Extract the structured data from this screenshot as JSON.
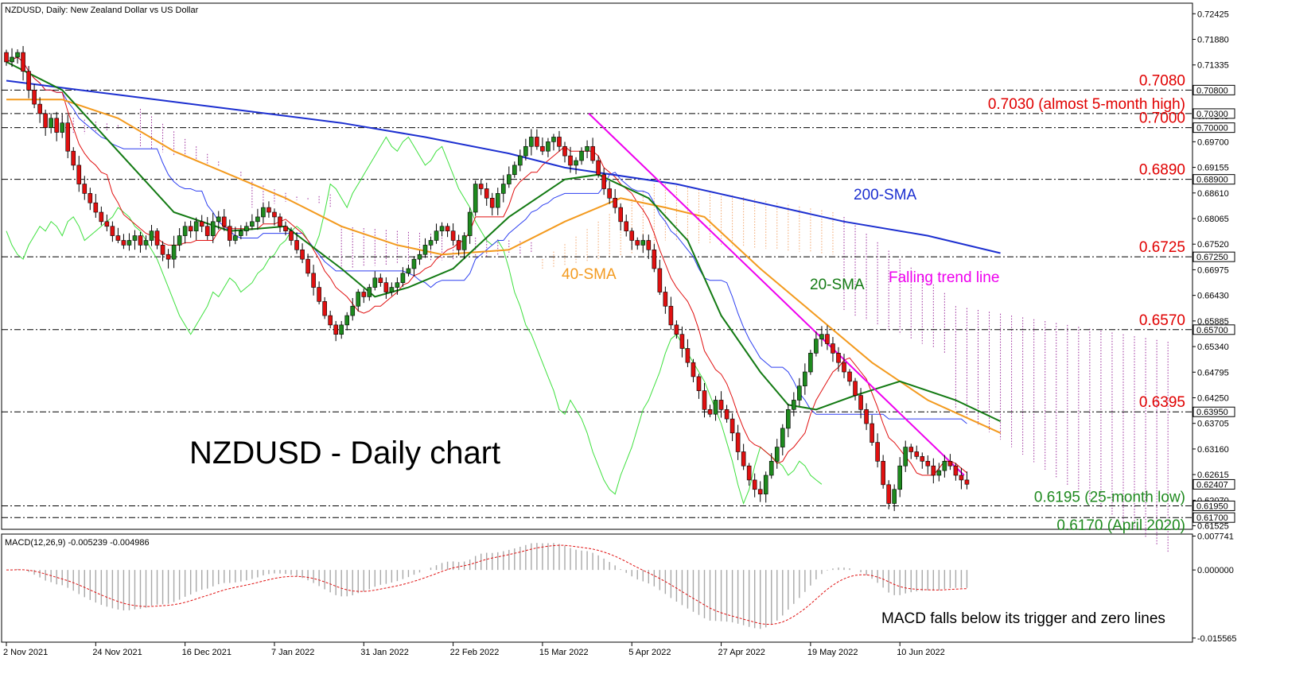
{
  "header": {
    "symbol_label": "NZDUSD, Daily:  New Zealand Dollar vs US Dollar"
  },
  "macd_header": {
    "label": "MACD(12,26,9) -0.005239 -0.004986"
  },
  "annotations": {
    "title": "NZDUSD - Daily chart",
    "sma200": "200-SMA",
    "sma40": "40-SMA",
    "sma20": "20-SMA",
    "trend": "Falling trend line",
    "macd_note": "MACD falls below its trigger and zero lines"
  },
  "colors": {
    "bull": "#1e8a1e",
    "bear": "#e01010",
    "sma200": "#1c2fd0",
    "sma40": "#f39a1e",
    "sma20": "#137a13",
    "tenkan": "#e01010",
    "kijun": "#2d3ff0",
    "chikou": "#3ee03e",
    "trend": "#ee00ee",
    "cloud_bull": "#f2a46a",
    "cloud_bear": "#9a2a9a",
    "red_label": "#e00000",
    "green_label": "#1f8a1f"
  },
  "chart_data": {
    "type": "candlestick",
    "price_axis": {
      "ylim": [
        0.6145,
        0.7265
      ],
      "ticks": [
        "0.72425",
        "0.71880",
        "0.71335",
        "0.70790",
        "0.70245",
        "0.69700",
        "0.69155",
        "0.68610",
        "0.68065",
        "0.67520",
        "0.66975",
        "0.66430",
        "0.65885",
        "0.65340",
        "0.64795",
        "0.64250",
        "0.63705",
        "0.63160",
        "0.62615",
        "0.62070",
        "0.61525"
      ],
      "current_price": "0.62407"
    },
    "levels": [
      {
        "value": 0.708,
        "axis_label": "0.70800",
        "text": "0.7080",
        "color": "red"
      },
      {
        "value": 0.703,
        "axis_label": "0.70300",
        "text": "0.7030 (almost 5-month high)",
        "color": "red"
      },
      {
        "value": 0.7,
        "axis_label": "0.70000",
        "text": "0.7000",
        "color": "red"
      },
      {
        "value": 0.689,
        "axis_label": "0.68900",
        "text": "0.6890",
        "color": "red"
      },
      {
        "value": 0.6725,
        "axis_label": "0.67250",
        "text": "0.6725",
        "color": "red"
      },
      {
        "value": 0.657,
        "axis_label": "0.65700",
        "text": "0.6570",
        "color": "red"
      },
      {
        "value": 0.6395,
        "axis_label": "0.63950",
        "text": "0.6395",
        "color": "red"
      },
      {
        "value": 0.6195,
        "axis_label": "0.61950",
        "text": "0.6195 (25-month low)",
        "color": "green"
      },
      {
        "value": 0.617,
        "axis_label": "0.61700",
        "text": "0.6170 (April 2020)",
        "color": "green"
      }
    ],
    "x_axis": {
      "labels": [
        "2 Nov 2021",
        "24 Nov 2021",
        "16 Dec 2021",
        "7 Jan 2022",
        "31 Jan 2022",
        "22 Feb 2022",
        "15 Mar 2022",
        "5 Apr 2022",
        "27 Apr 2022",
        "19 May 2022",
        "10 Jun 2022"
      ],
      "label_bar_index": [
        0,
        16,
        32,
        48,
        64,
        80,
        96,
        112,
        128,
        144,
        160
      ]
    },
    "close": [
      0.714,
      0.715,
      0.716,
      0.712,
      0.708,
      0.705,
      0.703,
      0.7,
      0.702,
      0.699,
      0.701,
      0.695,
      0.692,
      0.688,
      0.686,
      0.684,
      0.682,
      0.68,
      0.679,
      0.677,
      0.676,
      0.675,
      0.676,
      0.677,
      0.675,
      0.676,
      0.678,
      0.675,
      0.673,
      0.672,
      0.675,
      0.677,
      0.679,
      0.678,
      0.68,
      0.679,
      0.677,
      0.68,
      0.681,
      0.679,
      0.676,
      0.677,
      0.678,
      0.679,
      0.68,
      0.681,
      0.683,
      0.682,
      0.681,
      0.679,
      0.678,
      0.676,
      0.674,
      0.672,
      0.669,
      0.666,
      0.663,
      0.66,
      0.658,
      0.656,
      0.658,
      0.66,
      0.662,
      0.665,
      0.664,
      0.666,
      0.668,
      0.667,
      0.665,
      0.666,
      0.667,
      0.669,
      0.67,
      0.672,
      0.673,
      0.675,
      0.676,
      0.678,
      0.679,
      0.678,
      0.676,
      0.674,
      0.677,
      0.682,
      0.688,
      0.687,
      0.685,
      0.683,
      0.686,
      0.688,
      0.69,
      0.692,
      0.694,
      0.696,
      0.698,
      0.696,
      0.695,
      0.697,
      0.698,
      0.696,
      0.694,
      0.692,
      0.693,
      0.695,
      0.696,
      0.693,
      0.69,
      0.687,
      0.685,
      0.683,
      0.68,
      0.678,
      0.676,
      0.675,
      0.676,
      0.674,
      0.67,
      0.665,
      0.662,
      0.658,
      0.656,
      0.653,
      0.65,
      0.647,
      0.644,
      0.64,
      0.639,
      0.642,
      0.64,
      0.638,
      0.635,
      0.631,
      0.628,
      0.625,
      0.623,
      0.622,
      0.626,
      0.629,
      0.632,
      0.636,
      0.64,
      0.642,
      0.645,
      0.648,
      0.652,
      0.655,
      0.656,
      0.654,
      0.652,
      0.65,
      0.648,
      0.646,
      0.643,
      0.64,
      0.637,
      0.633,
      0.629,
      0.624,
      0.62,
      0.623,
      0.628,
      0.632,
      0.631,
      0.63,
      0.629,
      0.628,
      0.626,
      0.627,
      0.629,
      0.628,
      0.626,
      0.625,
      0.6241
    ],
    "series": [
      {
        "name": "200-SMA",
        "line": [
          [
            0,
            0.71
          ],
          [
            20,
            0.707
          ],
          [
            40,
            0.704
          ],
          [
            60,
            0.701
          ],
          [
            75,
            0.698
          ],
          [
            90,
            0.6945
          ],
          [
            100,
            0.6915
          ],
          [
            120,
            0.688
          ],
          [
            135,
            0.684
          ],
          [
            150,
            0.68
          ],
          [
            165,
            0.677
          ],
          [
            178,
            0.6733
          ]
        ]
      },
      {
        "name": "40-SMA",
        "line": [
          [
            0,
            0.706
          ],
          [
            10,
            0.706
          ],
          [
            20,
            0.702
          ],
          [
            30,
            0.695
          ],
          [
            40,
            0.69
          ],
          [
            50,
            0.685
          ],
          [
            60,
            0.679
          ],
          [
            70,
            0.675
          ],
          [
            78,
            0.673
          ],
          [
            90,
            0.674
          ],
          [
            100,
            0.68
          ],
          [
            110,
            0.685
          ],
          [
            118,
            0.683
          ],
          [
            125,
            0.681
          ],
          [
            135,
            0.67
          ],
          [
            145,
            0.66
          ],
          [
            155,
            0.65
          ],
          [
            165,
            0.642
          ],
          [
            178,
            0.635
          ]
        ]
      },
      {
        "name": "20-SMA",
        "line": [
          [
            0,
            0.714
          ],
          [
            10,
            0.708
          ],
          [
            20,
            0.695
          ],
          [
            30,
            0.682
          ],
          [
            40,
            0.678
          ],
          [
            50,
            0.679
          ],
          [
            60,
            0.67
          ],
          [
            66,
            0.664
          ],
          [
            72,
            0.666
          ],
          [
            80,
            0.67
          ],
          [
            90,
            0.681
          ],
          [
            100,
            0.689
          ],
          [
            106,
            0.69
          ],
          [
            115,
            0.685
          ],
          [
            122,
            0.676
          ],
          [
            128,
            0.66
          ],
          [
            135,
            0.648
          ],
          [
            140,
            0.641
          ],
          [
            145,
            0.64
          ],
          [
            152,
            0.643
          ],
          [
            160,
            0.646
          ],
          [
            170,
            0.642
          ],
          [
            178,
            0.6375
          ]
        ]
      },
      {
        "name": "trend",
        "line": [
          [
            104.3,
            0.703
          ],
          [
            171.5,
            0.626
          ]
        ]
      }
    ],
    "macd_axis": {
      "ylim": [
        -0.0165,
        0.0082
      ],
      "ticks": [
        "0.007741",
        "0.000000",
        "-0.015565"
      ],
      "zero": 0.0
    }
  }
}
